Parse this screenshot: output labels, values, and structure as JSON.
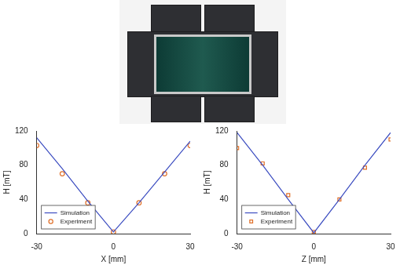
{
  "chart_data": [
    {
      "type": "scatter",
      "x_label": "X [mm]",
      "y_label": "H [mT]",
      "x": [
        -30,
        -20,
        -10,
        0,
        10,
        20,
        30
      ],
      "series": [
        {
          "name": "Simulation",
          "color": "#3b4cc0",
          "type": "line",
          "line_style": "solid",
          "values": [
            112,
            76,
            38,
            2,
            36,
            72,
            108
          ]
        },
        {
          "name": "Experiment",
          "color": "#e0702a",
          "type": "scatter",
          "marker": "circle",
          "values": [
            103,
            70,
            36,
            2,
            36,
            70,
            103
          ]
        }
      ],
      "xlim": [
        -30,
        30
      ],
      "xticks": [
        -30,
        0,
        30
      ],
      "ylim": [
        0,
        120
      ],
      "yticks": [
        0,
        40,
        80,
        120
      ],
      "grid": false,
      "legend": "lower left"
    },
    {
      "type": "scatter",
      "x_label": "Z [mm]",
      "y_label": "H [mT]",
      "x": [
        -30,
        -20,
        -10,
        0,
        10,
        20,
        30
      ],
      "series": [
        {
          "name": "Simulation",
          "color": "#3b4cc0",
          "type": "line",
          "line_style": "solid",
          "values": [
            118,
            80,
            40,
            1,
            40,
            80,
            118
          ]
        },
        {
          "name": "Experiment",
          "color": "#e0702a",
          "type": "scatter",
          "marker": "square",
          "values": [
            100,
            82,
            45,
            2,
            40,
            77,
            110
          ]
        }
      ],
      "xlim": [
        -30,
        30
      ],
      "xticks": [
        -30,
        0,
        30
      ],
      "ylim": [
        0,
        120
      ],
      "yticks": [
        0,
        40,
        80,
        120
      ],
      "grid": false,
      "legend": "lower left"
    }
  ]
}
